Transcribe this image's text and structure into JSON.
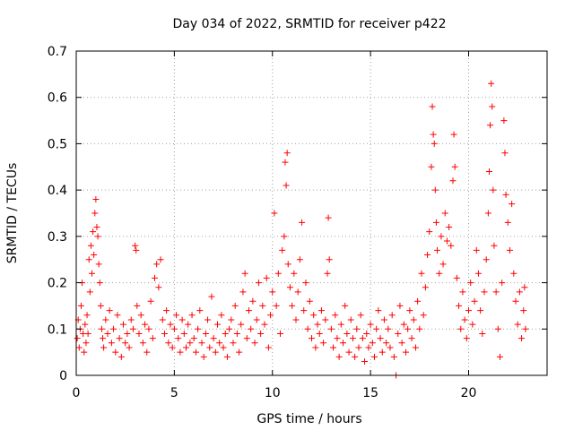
{
  "chart_data": {
    "type": "scatter",
    "title": "Day 034 of 2022, SRMTID for receiver p422",
    "xlabel": "GPS time / hours",
    "ylabel": "SRMTID / TECUs",
    "xlim": [
      0,
      24
    ],
    "ylim": [
      0,
      0.7
    ],
    "x_ticks": [
      0,
      5,
      10,
      15,
      20
    ],
    "y_ticks": [
      0,
      0.1,
      0.2,
      0.3,
      0.4,
      0.5,
      0.6,
      0.7
    ],
    "x_tick_labels": [
      "0",
      "5",
      "10",
      "15",
      "20"
    ],
    "y_tick_labels": [
      "0",
      "0.1",
      "0.2",
      "0.3",
      "0.4",
      "0.5",
      "0.6",
      "0.7"
    ],
    "grid": true,
    "marker": "+",
    "color": "#ff0000",
    "series": [
      {
        "name": "SRMTID",
        "points": [
          [
            0.05,
            0.08
          ],
          [
            0.1,
            0.12
          ],
          [
            0.15,
            0.06
          ],
          [
            0.2,
            0.1
          ],
          [
            0.25,
            0.15
          ],
          [
            0.3,
            0.2
          ],
          [
            0.35,
            0.09
          ],
          [
            0.4,
            0.05
          ],
          [
            0.45,
            0.11
          ],
          [
            0.5,
            0.07
          ],
          [
            0.55,
            0.13
          ],
          [
            0.6,
            0.09
          ],
          [
            0.65,
            0.25
          ],
          [
            0.7,
            0.18
          ],
          [
            0.75,
            0.28
          ],
          [
            0.8,
            0.22
          ],
          [
            0.85,
            0.31
          ],
          [
            0.9,
            0.26
          ],
          [
            0.95,
            0.35
          ],
          [
            1.0,
            0.38
          ],
          [
            1.05,
            0.32
          ],
          [
            1.1,
            0.3
          ],
          [
            1.15,
            0.24
          ],
          [
            1.2,
            0.2
          ],
          [
            1.25,
            0.15
          ],
          [
            1.3,
            0.1
          ],
          [
            1.35,
            0.08
          ],
          [
            1.4,
            0.06
          ],
          [
            1.5,
            0.12
          ],
          [
            1.6,
            0.09
          ],
          [
            1.7,
            0.14
          ],
          [
            1.8,
            0.07
          ],
          [
            1.9,
            0.1
          ],
          [
            2.0,
            0.05
          ],
          [
            2.1,
            0.13
          ],
          [
            2.2,
            0.08
          ],
          [
            2.3,
            0.04
          ],
          [
            2.4,
            0.11
          ],
          [
            2.5,
            0.07
          ],
          [
            2.6,
            0.09
          ],
          [
            2.7,
            0.06
          ],
          [
            2.8,
            0.12
          ],
          [
            2.9,
            0.1
          ],
          [
            3.0,
            0.28
          ],
          [
            3.05,
            0.27
          ],
          [
            3.1,
            0.15
          ],
          [
            3.2,
            0.09
          ],
          [
            3.3,
            0.13
          ],
          [
            3.4,
            0.07
          ],
          [
            3.5,
            0.11
          ],
          [
            3.6,
            0.05
          ],
          [
            3.7,
            0.1
          ],
          [
            3.8,
            0.16
          ],
          [
            3.9,
            0.08
          ],
          [
            4.0,
            0.21
          ],
          [
            4.1,
            0.24
          ],
          [
            4.2,
            0.19
          ],
          [
            4.3,
            0.25
          ],
          [
            4.4,
            0.12
          ],
          [
            4.5,
            0.09
          ],
          [
            4.6,
            0.14
          ],
          [
            4.7,
            0.07
          ],
          [
            4.8,
            0.11
          ],
          [
            4.9,
            0.06
          ],
          [
            5.0,
            0.1
          ],
          [
            5.1,
            0.13
          ],
          [
            5.2,
            0.08
          ],
          [
            5.3,
            0.05
          ],
          [
            5.4,
            0.12
          ],
          [
            5.5,
            0.09
          ],
          [
            5.6,
            0.06
          ],
          [
            5.7,
            0.11
          ],
          [
            5.8,
            0.07
          ],
          [
            5.9,
            0.13
          ],
          [
            6.0,
            0.08
          ],
          [
            6.1,
            0.05
          ],
          [
            6.2,
            0.1
          ],
          [
            6.3,
            0.14
          ],
          [
            6.4,
            0.07
          ],
          [
            6.5,
            0.04
          ],
          [
            6.6,
            0.09
          ],
          [
            6.7,
            0.12
          ],
          [
            6.8,
            0.06
          ],
          [
            6.9,
            0.17
          ],
          [
            7.0,
            0.08
          ],
          [
            7.1,
            0.05
          ],
          [
            7.2,
            0.11
          ],
          [
            7.3,
            0.07
          ],
          [
            7.4,
            0.13
          ],
          [
            7.5,
            0.06
          ],
          [
            7.6,
            0.09
          ],
          [
            7.7,
            0.04
          ],
          [
            7.8,
            0.1
          ],
          [
            7.9,
            0.12
          ],
          [
            8.0,
            0.07
          ],
          [
            8.1,
            0.15
          ],
          [
            8.2,
            0.09
          ],
          [
            8.3,
            0.05
          ],
          [
            8.4,
            0.11
          ],
          [
            8.5,
            0.18
          ],
          [
            8.6,
            0.22
          ],
          [
            8.7,
            0.08
          ],
          [
            8.8,
            0.14
          ],
          [
            8.9,
            0.1
          ],
          [
            9.0,
            0.16
          ],
          [
            9.1,
            0.07
          ],
          [
            9.2,
            0.12
          ],
          [
            9.3,
            0.2
          ],
          [
            9.4,
            0.09
          ],
          [
            9.5,
            0.15
          ],
          [
            9.6,
            0.11
          ],
          [
            9.7,
            0.21
          ],
          [
            9.8,
            0.06
          ],
          [
            9.9,
            0.13
          ],
          [
            10.0,
            0.18
          ],
          [
            10.1,
            0.35
          ],
          [
            10.2,
            0.15
          ],
          [
            10.3,
            0.22
          ],
          [
            10.4,
            0.09
          ],
          [
            10.5,
            0.27
          ],
          [
            10.6,
            0.3
          ],
          [
            10.65,
            0.46
          ],
          [
            10.7,
            0.41
          ],
          [
            10.75,
            0.48
          ],
          [
            10.8,
            0.24
          ],
          [
            10.9,
            0.19
          ],
          [
            11.0,
            0.15
          ],
          [
            11.1,
            0.22
          ],
          [
            11.2,
            0.12
          ],
          [
            11.3,
            0.18
          ],
          [
            11.4,
            0.25
          ],
          [
            11.5,
            0.33
          ],
          [
            11.6,
            0.14
          ],
          [
            11.7,
            0.2
          ],
          [
            11.8,
            0.1
          ],
          [
            11.9,
            0.16
          ],
          [
            12.0,
            0.08
          ],
          [
            12.1,
            0.13
          ],
          [
            12.2,
            0.06
          ],
          [
            12.3,
            0.11
          ],
          [
            12.4,
            0.09
          ],
          [
            12.5,
            0.14
          ],
          [
            12.6,
            0.07
          ],
          [
            12.7,
            0.12
          ],
          [
            12.8,
            0.22
          ],
          [
            12.85,
            0.34
          ],
          [
            12.9,
            0.25
          ],
          [
            13.0,
            0.1
          ],
          [
            13.1,
            0.06
          ],
          [
            13.2,
            0.13
          ],
          [
            13.3,
            0.08
          ],
          [
            13.4,
            0.04
          ],
          [
            13.5,
            0.11
          ],
          [
            13.6,
            0.07
          ],
          [
            13.7,
            0.15
          ],
          [
            13.8,
            0.09
          ],
          [
            13.9,
            0.05
          ],
          [
            14.0,
            0.12
          ],
          [
            14.1,
            0.08
          ],
          [
            14.2,
            0.04
          ],
          [
            14.3,
            0.1
          ],
          [
            14.4,
            0.06
          ],
          [
            14.5,
            0.13
          ],
          [
            14.6,
            0.08
          ],
          [
            14.7,
            0.03
          ],
          [
            14.8,
            0.09
          ],
          [
            14.9,
            0.06
          ],
          [
            15.0,
            0.11
          ],
          [
            15.1,
            0.07
          ],
          [
            15.2,
            0.04
          ],
          [
            15.3,
            0.1
          ],
          [
            15.4,
            0.14
          ],
          [
            15.5,
            0.08
          ],
          [
            15.6,
            0.05
          ],
          [
            15.7,
            0.12
          ],
          [
            15.8,
            0.07
          ],
          [
            15.9,
            0.1
          ],
          [
            16.0,
            0.06
          ],
          [
            16.1,
            0.13
          ],
          [
            16.2,
            0.04
          ],
          [
            16.3,
            0.0
          ],
          [
            16.4,
            0.09
          ],
          [
            16.5,
            0.15
          ],
          [
            16.6,
            0.07
          ],
          [
            16.7,
            0.11
          ],
          [
            16.8,
            0.05
          ],
          [
            16.9,
            0.1
          ],
          [
            17.0,
            0.14
          ],
          [
            17.1,
            0.08
          ],
          [
            17.2,
            0.12
          ],
          [
            17.3,
            0.06
          ],
          [
            17.4,
            0.16
          ],
          [
            17.5,
            0.1
          ],
          [
            17.6,
            0.22
          ],
          [
            17.7,
            0.13
          ],
          [
            17.8,
            0.19
          ],
          [
            17.9,
            0.26
          ],
          [
            18.0,
            0.31
          ],
          [
            18.1,
            0.45
          ],
          [
            18.15,
            0.58
          ],
          [
            18.2,
            0.52
          ],
          [
            18.25,
            0.5
          ],
          [
            18.3,
            0.4
          ],
          [
            18.35,
            0.33
          ],
          [
            18.4,
            0.27
          ],
          [
            18.5,
            0.22
          ],
          [
            18.6,
            0.3
          ],
          [
            18.7,
            0.24
          ],
          [
            18.8,
            0.35
          ],
          [
            18.9,
            0.29
          ],
          [
            19.0,
            0.32
          ],
          [
            19.1,
            0.28
          ],
          [
            19.2,
            0.42
          ],
          [
            19.25,
            0.52
          ],
          [
            19.3,
            0.45
          ],
          [
            19.4,
            0.21
          ],
          [
            19.5,
            0.15
          ],
          [
            19.6,
            0.1
          ],
          [
            19.7,
            0.18
          ],
          [
            19.8,
            0.12
          ],
          [
            19.9,
            0.08
          ],
          [
            20.0,
            0.14
          ],
          [
            20.1,
            0.2
          ],
          [
            20.2,
            0.11
          ],
          [
            20.3,
            0.16
          ],
          [
            20.4,
            0.27
          ],
          [
            20.5,
            0.22
          ],
          [
            20.6,
            0.14
          ],
          [
            20.7,
            0.09
          ],
          [
            20.8,
            0.18
          ],
          [
            20.9,
            0.25
          ],
          [
            21.0,
            0.35
          ],
          [
            21.05,
            0.44
          ],
          [
            21.1,
            0.54
          ],
          [
            21.15,
            0.63
          ],
          [
            21.2,
            0.58
          ],
          [
            21.25,
            0.4
          ],
          [
            21.3,
            0.28
          ],
          [
            21.4,
            0.18
          ],
          [
            21.5,
            0.1
          ],
          [
            21.6,
            0.04
          ],
          [
            21.7,
            0.2
          ],
          [
            21.8,
            0.55
          ],
          [
            21.85,
            0.48
          ],
          [
            21.9,
            0.39
          ],
          [
            22.0,
            0.33
          ],
          [
            22.1,
            0.27
          ],
          [
            22.2,
            0.37
          ],
          [
            22.3,
            0.22
          ],
          [
            22.4,
            0.16
          ],
          [
            22.5,
            0.11
          ],
          [
            22.6,
            0.18
          ],
          [
            22.7,
            0.08
          ],
          [
            22.8,
            0.14
          ],
          [
            22.85,
            0.19
          ],
          [
            22.9,
            0.1
          ]
        ]
      }
    ]
  }
}
